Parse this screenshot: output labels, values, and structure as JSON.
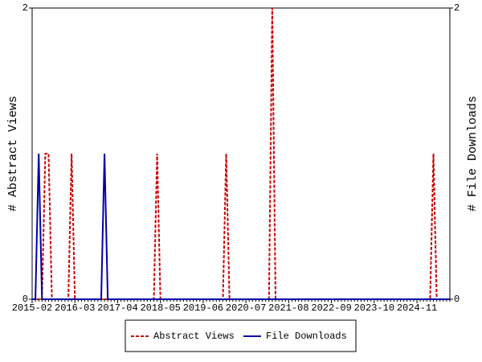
{
  "chart_data": {
    "type": "line",
    "categories": [
      "2015-02",
      null,
      null,
      null,
      null,
      null,
      null,
      null,
      null,
      null,
      null,
      null,
      null,
      "2016-03",
      null,
      null,
      null,
      null,
      null,
      null,
      null,
      null,
      null,
      null,
      null,
      null,
      "2017-04",
      null,
      null,
      null,
      null,
      null,
      null,
      null,
      null,
      null,
      null,
      null,
      null,
      "2018-05",
      null,
      null,
      null,
      null,
      null,
      null,
      null,
      null,
      null,
      null,
      null,
      null,
      "2019-06",
      null,
      null,
      null,
      null,
      null,
      null,
      null,
      null,
      null,
      null,
      null,
      null,
      "2020-07",
      null,
      null,
      null,
      null,
      null,
      null,
      null,
      null,
      null,
      null,
      null,
      null,
      "2021-08",
      null,
      null,
      null,
      null,
      null,
      null,
      null,
      null,
      null,
      null,
      null,
      null,
      "2022-09",
      null,
      null,
      null,
      null,
      null,
      null,
      null,
      null,
      null,
      null,
      null,
      null,
      "2023-10",
      null,
      null,
      null,
      null,
      null,
      null,
      null,
      null,
      null,
      null,
      null,
      null,
      "2024-11",
      null,
      null,
      null,
      null,
      null,
      null,
      null,
      null,
      null,
      null
    ],
    "series": [
      {
        "name": "Abstract Views",
        "color": "#cc0000",
        "dash": true,
        "values": [
          0,
          0,
          0,
          0,
          1,
          1,
          0,
          0,
          0,
          0,
          0,
          0,
          1,
          0,
          0,
          0,
          0,
          0,
          0,
          0,
          0,
          0,
          0,
          0,
          0,
          0,
          0,
          0,
          0,
          0,
          0,
          0,
          0,
          0,
          0,
          0,
          0,
          0,
          1,
          0,
          0,
          0,
          0,
          0,
          0,
          0,
          0,
          0,
          0,
          0,
          0,
          0,
          0,
          0,
          0,
          0,
          0,
          0,
          0,
          1,
          0,
          0,
          0,
          0,
          0,
          0,
          0,
          0,
          0,
          0,
          0,
          0,
          0,
          2,
          0,
          0,
          0,
          0,
          0,
          0,
          0,
          0,
          0,
          0,
          0,
          0,
          0,
          0,
          0,
          0,
          0,
          0,
          0,
          0,
          0,
          0,
          0,
          0,
          0,
          0,
          0,
          0,
          0,
          0,
          0,
          0,
          0,
          0,
          0,
          0,
          0,
          0,
          0,
          0,
          0,
          0,
          0,
          0,
          0,
          0,
          0,
          0,
          1,
          0,
          0,
          0,
          0,
          0
        ]
      },
      {
        "name": "File Downloads",
        "color": "#0000aa",
        "dash": false,
        "axis": "y2",
        "values": [
          0,
          0,
          1,
          0,
          0,
          0,
          0,
          0,
          0,
          0,
          0,
          0,
          0,
          0,
          0,
          0,
          0,
          0,
          0,
          0,
          0,
          0,
          1,
          0,
          0,
          0,
          0,
          0,
          0,
          0,
          0,
          0,
          0,
          0,
          0,
          0,
          0,
          0,
          0,
          0,
          0,
          0,
          0,
          0,
          0,
          0,
          0,
          0,
          0,
          0,
          0,
          0,
          0,
          0,
          0,
          0,
          0,
          0,
          0,
          0,
          0,
          0,
          0,
          0,
          0,
          0,
          0,
          0,
          0,
          0,
          0,
          0,
          0,
          0,
          0,
          0,
          0,
          0,
          0,
          0,
          0,
          0,
          0,
          0,
          0,
          0,
          0,
          0,
          0,
          0,
          0,
          0,
          0,
          0,
          0,
          0,
          0,
          0,
          0,
          0,
          0,
          0,
          0,
          0,
          0,
          0,
          0,
          0,
          0,
          0,
          0,
          0,
          0,
          0,
          0,
          0,
          0,
          0,
          0,
          0,
          0,
          0,
          0,
          0,
          0,
          0,
          0,
          0
        ]
      }
    ],
    "ylabel": "# Abstract Views",
    "y2label": "# File Downloads",
    "ylim": [
      0,
      2
    ],
    "yticks": [
      0,
      2
    ],
    "y2lim": [
      0,
      2
    ],
    "y2ticks": [
      0,
      2
    ],
    "legend": "bottom"
  }
}
